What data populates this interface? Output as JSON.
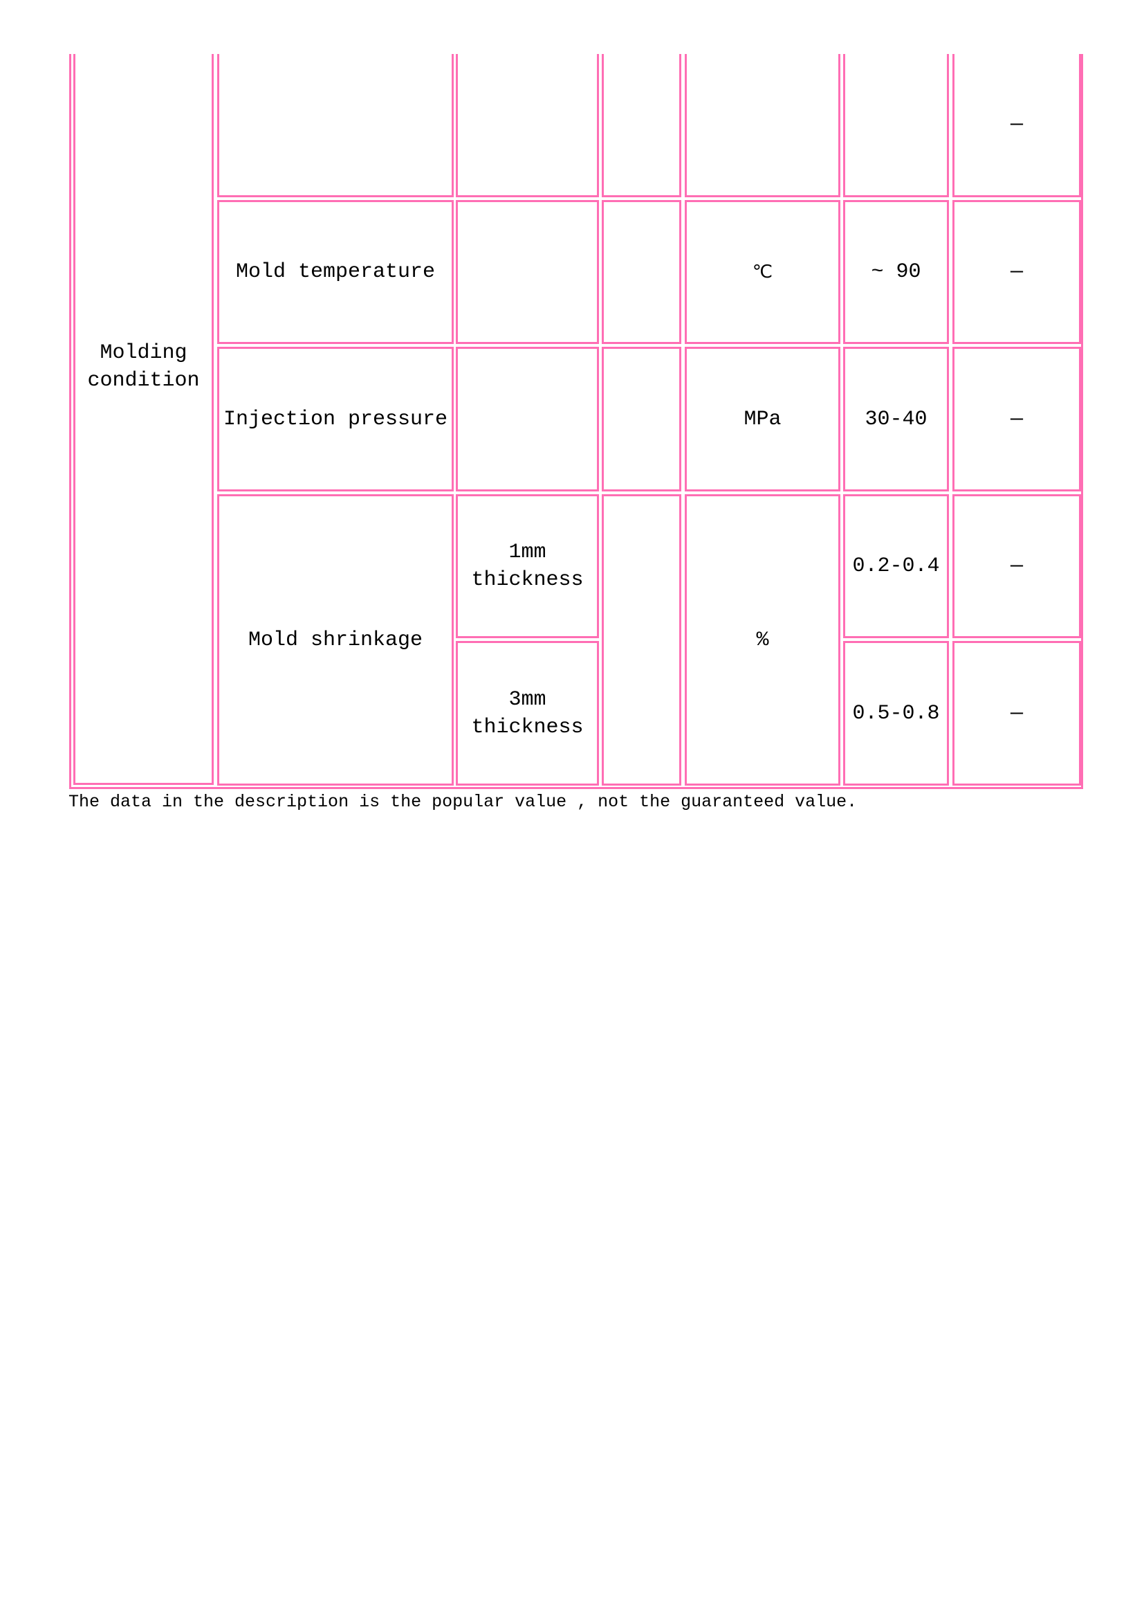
{
  "table": {
    "group_label": "Molding\ncondition",
    "rows": [
      {
        "item": "",
        "sub": "",
        "col3": "",
        "unit": "",
        "value": "",
        "remark": "—"
      },
      {
        "item": "Mold temperature",
        "sub": "",
        "col3": "",
        "unit": "℃",
        "value": "~ 90",
        "remark": "—"
      },
      {
        "item": "Injection pressure",
        "sub": "",
        "col3": "",
        "unit": "MPa",
        "value": "30-40",
        "remark": "—"
      },
      {
        "item": "Mold shrinkage",
        "sub": "1mm\nthickness",
        "col3": "",
        "unit": "%",
        "value": "0.2-0.4",
        "remark": "—"
      },
      {
        "item": "",
        "sub": "3mm\nthickness",
        "value": "0.5-0.8",
        "remark": "—"
      }
    ]
  },
  "footnote": "The data in the description is the popular value , not the guaranteed value.",
  "colors": {
    "border": "#ff6eb4"
  }
}
